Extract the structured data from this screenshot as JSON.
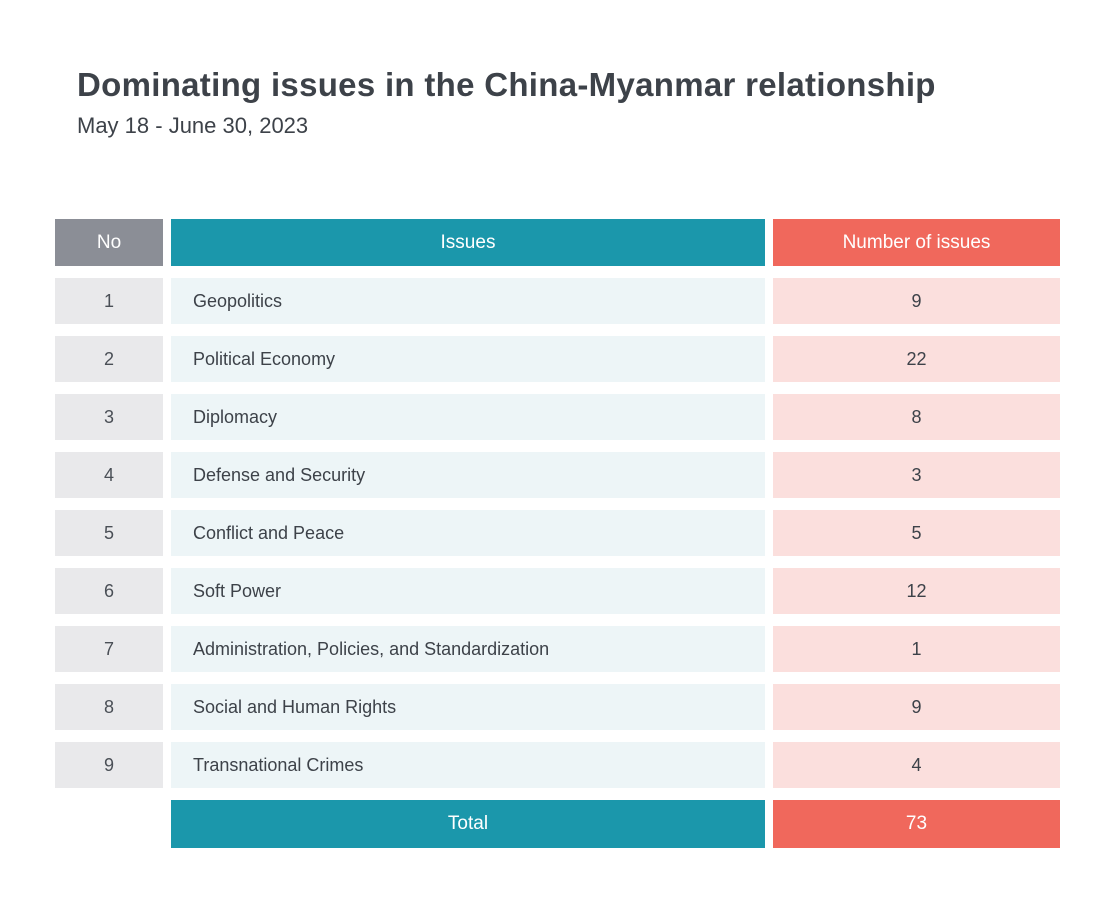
{
  "title": "Dominating issues in the China-Myanmar relationship",
  "subtitle": "May 18 - June 30, 2023",
  "colors": {
    "no_header": "#8b8e96",
    "issues_header": "#1b97ab",
    "number_header": "#f0685c",
    "no_cell": "#e9e9eb",
    "issues_cell": "#edf5f7",
    "number_cell": "#fbdfdd",
    "text": "#3d4249"
  },
  "table": {
    "headers": {
      "no": "No",
      "issues": "Issues",
      "number": "Number of issues"
    },
    "rows": [
      {
        "no": "1",
        "issue": "Geopolitics",
        "count": "9"
      },
      {
        "no": "2",
        "issue": "Political Economy",
        "count": "22"
      },
      {
        "no": "3",
        "issue": "Diplomacy",
        "count": "8"
      },
      {
        "no": "4",
        "issue": "Defense and Security",
        "count": "3"
      },
      {
        "no": "5",
        "issue": "Conflict and Peace",
        "count": "5"
      },
      {
        "no": "6",
        "issue": "Soft Power",
        "count": "12"
      },
      {
        "no": "7",
        "issue": "Administration, Policies, and Standardization",
        "count": "1"
      },
      {
        "no": "8",
        "issue": "Social and Human Rights",
        "count": "9"
      },
      {
        "no": "9",
        "issue": "Transnational Crimes",
        "count": "4"
      }
    ],
    "total": {
      "label": "Total",
      "count": "73"
    }
  },
  "chart_data": {
    "type": "table",
    "title": "Dominating issues in the China-Myanmar relationship",
    "subtitle": "May 18 - June 30, 2023",
    "columns": [
      "No",
      "Issues",
      "Number of issues"
    ],
    "rows": [
      [
        1,
        "Geopolitics",
        9
      ],
      [
        2,
        "Political Economy",
        22
      ],
      [
        3,
        "Diplomacy",
        8
      ],
      [
        4,
        "Defense and Security",
        3
      ],
      [
        5,
        "Conflict and Peace",
        5
      ],
      [
        6,
        "Soft Power",
        12
      ],
      [
        7,
        "Administration, Policies, and Standardization",
        1
      ],
      [
        8,
        "Social and Human Rights",
        9
      ],
      [
        9,
        "Transnational Crimes",
        4
      ]
    ],
    "total": 73
  }
}
